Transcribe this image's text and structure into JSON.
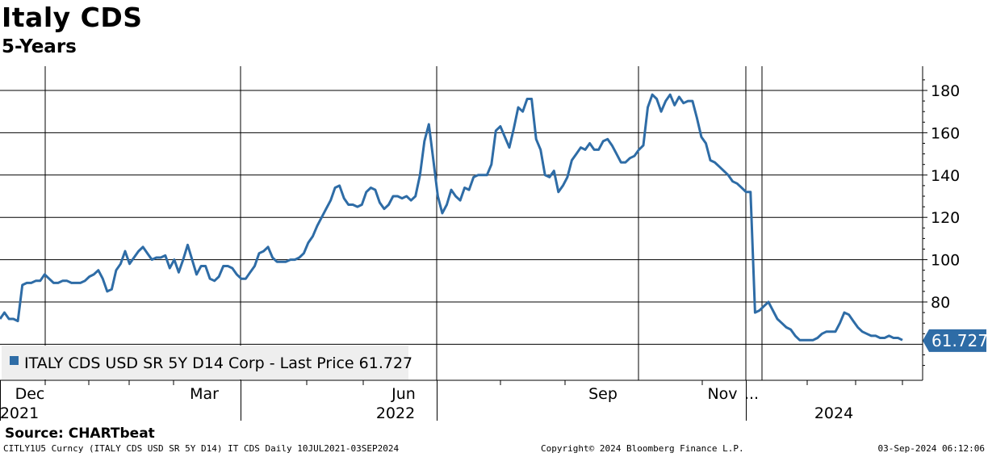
{
  "header": {
    "title": "Italy CDS",
    "subtitle": "5-Years"
  },
  "legend": {
    "text": "ITALY CDS USD SR 5Y D14 Corp - Last Price 61.727",
    "position": "bottom-left"
  },
  "last_value_label": "61.727",
  "source": "Source: CHARTbeat",
  "footer": {
    "left": "CITLY1U5 Curncy (ITALY CDS USD SR 5Y D14) IT CDS  Daily 10JUL2021-03SEP2024",
    "center": "Copyright© 2024 Bloomberg Finance L.P.",
    "right": "03-Sep-2024 06:12:06"
  },
  "colors": {
    "series": "#2e6ca6",
    "last_label_bg": "#2e6ca6",
    "grid": "#000000",
    "legend_bg": "#eeeeee"
  },
  "chart_data": {
    "type": "line",
    "title": "Italy CDS",
    "subtitle": "5-Years",
    "ylim": [
      45,
      190
    ],
    "yticks": [
      80,
      100,
      120,
      140,
      160,
      180
    ],
    "y_axis_side": "right",
    "grid": true,
    "x_tick_labels": [
      {
        "month": "Dec",
        "year": "2021"
      },
      {
        "month": "Mar",
        "year": ""
      },
      {
        "month": "Jun",
        "year": "2022"
      },
      {
        "month": "Sep",
        "year": ""
      },
      {
        "month": "Nov",
        "year": ""
      },
      {
        "month": "...",
        "year": ""
      },
      {
        "month": "",
        "year": "2024"
      }
    ],
    "series": [
      {
        "values": [
          72,
          75,
          72,
          72,
          71,
          88,
          89,
          89,
          90,
          90,
          93,
          91,
          89,
          89,
          90,
          90,
          89,
          89,
          89,
          90,
          92,
          93,
          95,
          91,
          85,
          86,
          95,
          98,
          104,
          98,
          101,
          104,
          106,
          103,
          100,
          101,
          101,
          102,
          96,
          100,
          94,
          100,
          107,
          100,
          93,
          97,
          97,
          91,
          90,
          92,
          97,
          97,
          96,
          93,
          91,
          91,
          94,
          97,
          103,
          104,
          106,
          101,
          99,
          99,
          99,
          100,
          100,
          101,
          103,
          108,
          111,
          116,
          120,
          124,
          128,
          134,
          135,
          129,
          126,
          126,
          125,
          126,
          132,
          134,
          133,
          127,
          124,
          126,
          130,
          130,
          129,
          130,
          128,
          130,
          140,
          156,
          164,
          147,
          130,
          122,
          126,
          133,
          130,
          128,
          134,
          133,
          139,
          140,
          140,
          140,
          145,
          161,
          163,
          158,
          153,
          162,
          172,
          170,
          176,
          176,
          157,
          152,
          140,
          139,
          142,
          132,
          135,
          139,
          147,
          150,
          153,
          152,
          155,
          152,
          152,
          156,
          157,
          154,
          150,
          146,
          146,
          148,
          149,
          152,
          154,
          172,
          178,
          176,
          170,
          175,
          178,
          173,
          177,
          174,
          175,
          175,
          167,
          158,
          155,
          147,
          146,
          144,
          142,
          140,
          137,
          136,
          134,
          132,
          132,
          75,
          76,
          78,
          80,
          76,
          72,
          70,
          68,
          67,
          64,
          62,
          62,
          62,
          62,
          63,
          65,
          66,
          66,
          66,
          70,
          75,
          74,
          71,
          68,
          66,
          65,
          64,
          64,
          63,
          63,
          64,
          63,
          63,
          62
        ]
      }
    ],
    "last_value": 61.727
  }
}
